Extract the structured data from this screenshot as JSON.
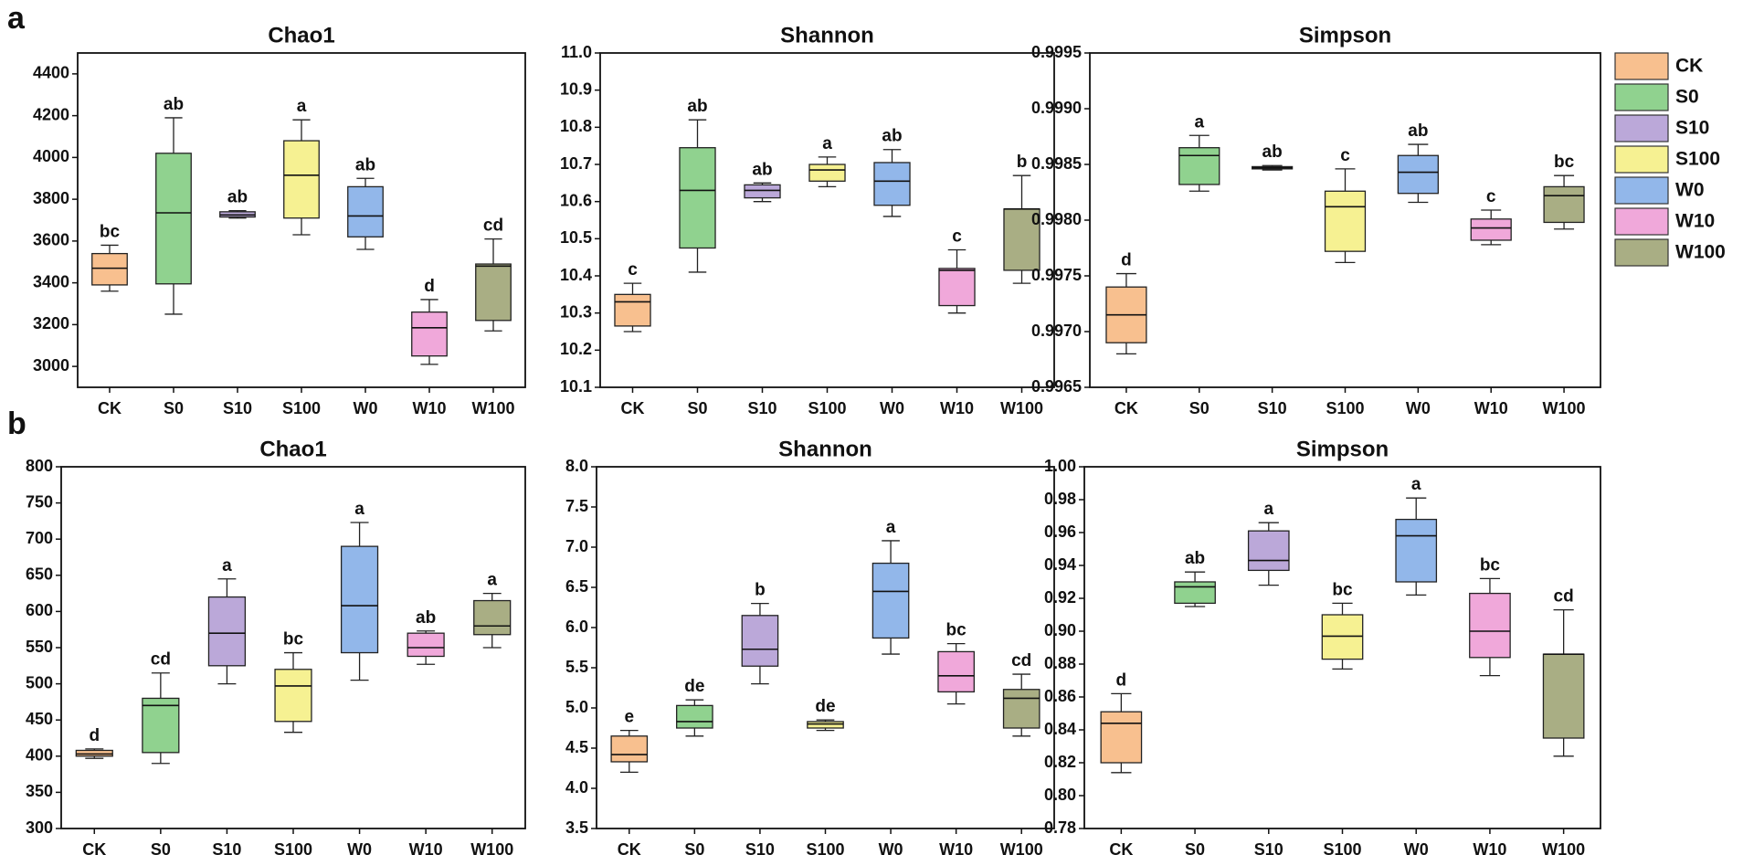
{
  "panel_labels": [
    "a",
    "b"
  ],
  "chart_data": [
    {
      "type": "box",
      "title": "Chao1",
      "categories": [
        "CK",
        "S0",
        "S10",
        "S100",
        "W0",
        "W10",
        "W100"
      ],
      "colors": [
        "#f8c08f",
        "#90d28f",
        "#bba8d9",
        "#f6f192",
        "#92b7ea",
        "#f0a8da",
        "#a9ae84"
      ],
      "ylim": [
        2900,
        4500
      ],
      "yticks": [
        3000,
        3200,
        3400,
        3600,
        3800,
        4000,
        4200,
        4400
      ],
      "min": [
        3360,
        3250,
        3710,
        3630,
        3560,
        3010,
        3170
      ],
      "q1": [
        3390,
        3395,
        3715,
        3710,
        3620,
        3050,
        3220
      ],
      "median": [
        3470,
        3735,
        3725,
        3915,
        3720,
        3185,
        3480
      ],
      "q3": [
        3540,
        4020,
        3740,
        4080,
        3860,
        3260,
        3490
      ],
      "max": [
        3580,
        4190,
        3745,
        4180,
        3900,
        3320,
        3610
      ],
      "letters": [
        "bc",
        "ab",
        "ab",
        "a",
        "ab",
        "d",
        "cd"
      ]
    },
    {
      "type": "box",
      "title": "Shannon",
      "categories": [
        "CK",
        "S0",
        "S10",
        "S100",
        "W0",
        "W10",
        "W100"
      ],
      "colors": [
        "#f8c08f",
        "#90d28f",
        "#bba8d9",
        "#f6f192",
        "#92b7ea",
        "#f0a8da",
        "#a9ae84"
      ],
      "ylim": [
        10.1,
        11.0
      ],
      "yticks": [
        10.1,
        10.2,
        10.3,
        10.4,
        10.5,
        10.6,
        10.7,
        10.8,
        10.9,
        {
          "value": 11,
          "label": "11.0"
        }
      ],
      "min": [
        10.25,
        10.41,
        10.6,
        10.64,
        10.56,
        10.3,
        10.38
      ],
      "q1": [
        10.265,
        10.475,
        10.61,
        10.655,
        10.59,
        10.32,
        10.415
      ],
      "median": [
        10.33,
        10.63,
        10.63,
        10.685,
        10.655,
        10.415,
        10.58
      ],
      "q3": [
        10.35,
        10.745,
        10.645,
        10.7,
        10.705,
        10.42,
        10.58
      ],
      "max": [
        10.38,
        10.82,
        10.65,
        10.72,
        10.74,
        10.47,
        10.67
      ],
      "letters": [
        "c",
        "ab",
        "ab",
        "a",
        "ab",
        "c",
        "b"
      ]
    },
    {
      "type": "box",
      "title": "Simpson",
      "categories": [
        "CK",
        "S0",
        "S10",
        "S100",
        "W0",
        "W10",
        "W100"
      ],
      "colors": [
        "#f8c08f",
        "#90d28f",
        "#bba8d9",
        "#f6f192",
        "#92b7ea",
        "#f0a8da",
        "#a9ae84"
      ],
      "ylim": [
        0.9965,
        0.9995
      ],
      "yticks": [
        0.9965,
        {
          "value": 0.997,
          "label": "0.9970"
        },
        0.9975,
        {
          "value": 0.998,
          "label": "0.9980"
        },
        0.9985,
        {
          "value": 0.999,
          "label": "0.9990"
        },
        0.9995
      ],
      "min": [
        0.9968,
        0.99826,
        0.99845,
        0.99762,
        0.99816,
        0.99778,
        0.99792
      ],
      "q1": [
        0.9969,
        0.99832,
        0.99846,
        0.99772,
        0.99824,
        0.99782,
        0.99798
      ],
      "median": [
        0.99715,
        0.99858,
        0.99847,
        0.99812,
        0.99843,
        0.99793,
        0.99822
      ],
      "q3": [
        0.9974,
        0.99865,
        0.99848,
        0.99826,
        0.99858,
        0.99801,
        0.9983
      ],
      "max": [
        0.99752,
        0.99876,
        0.99849,
        0.99846,
        0.99868,
        0.99809,
        0.9984
      ],
      "letters": [
        "d",
        "a",
        "ab",
        "c",
        "ab",
        "c",
        "bc"
      ]
    },
    {
      "type": "box",
      "title": "Chao1",
      "categories": [
        "CK",
        "S0",
        "S10",
        "S100",
        "W0",
        "W10",
        "W100"
      ],
      "colors": [
        "#f8c08f",
        "#90d28f",
        "#bba8d9",
        "#f6f192",
        "#92b7ea",
        "#f0a8da",
        "#a9ae84"
      ],
      "ylim": [
        300,
        800
      ],
      "yticks": [
        300,
        350,
        400,
        450,
        500,
        550,
        600,
        650,
        700,
        750,
        800
      ],
      "min": [
        397,
        390,
        500,
        433,
        505,
        527,
        550
      ],
      "q1": [
        400,
        405,
        525,
        448,
        543,
        538,
        568
      ],
      "median": [
        403,
        470,
        570,
        497,
        608,
        550,
        580
      ],
      "q3": [
        408,
        480,
        620,
        520,
        690,
        570,
        615
      ],
      "max": [
        410,
        515,
        645,
        543,
        723,
        573,
        625
      ],
      "letters": [
        "d",
        "cd",
        "a",
        "bc",
        "a",
        "ab",
        "a"
      ]
    },
    {
      "type": "box",
      "title": "Shannon",
      "categories": [
        "CK",
        "S0",
        "S10",
        "S100",
        "W0",
        "W10",
        "W100"
      ],
      "colors": [
        "#f8c08f",
        "#90d28f",
        "#bba8d9",
        "#f6f192",
        "#92b7ea",
        "#f0a8da",
        "#a9ae84"
      ],
      "ylim": [
        3.5,
        8.0
      ],
      "yticks": [
        3.5,
        {
          "value": 4,
          "label": "4.0"
        },
        4.5,
        {
          "value": 5,
          "label": "5.0"
        },
        5.5,
        {
          "value": 6,
          "label": "6.0"
        },
        6.5,
        {
          "value": 7,
          "label": "7.0"
        },
        7.5,
        {
          "value": 8,
          "label": "8.0"
        }
      ],
      "min": [
        4.2,
        4.65,
        5.3,
        4.72,
        5.67,
        5.05,
        4.65
      ],
      "q1": [
        4.33,
        4.75,
        5.52,
        4.75,
        5.87,
        5.2,
        4.75
      ],
      "median": [
        4.42,
        4.83,
        5.73,
        4.8,
        6.45,
        5.4,
        5.12
      ],
      "q3": [
        4.65,
        5.03,
        6.15,
        4.83,
        6.8,
        5.7,
        5.23
      ],
      "max": [
        4.72,
        5.1,
        6.3,
        4.85,
        7.08,
        5.8,
        5.42
      ],
      "letters": [
        "e",
        "de",
        "b",
        "de",
        "a",
        "bc",
        "cd"
      ]
    },
    {
      "type": "box",
      "title": "Simpson",
      "categories": [
        "CK",
        "S0",
        "S10",
        "S100",
        "W0",
        "W10",
        "W100"
      ],
      "colors": [
        "#f8c08f",
        "#90d28f",
        "#bba8d9",
        "#f6f192",
        "#92b7ea",
        "#f0a8da",
        "#a9ae84"
      ],
      "ylim": [
        0.78,
        1.0
      ],
      "yticks": [
        0.78,
        {
          "value": 0.8,
          "label": "0.80"
        },
        0.82,
        0.84,
        0.86,
        0.88,
        {
          "value": 0.9,
          "label": "0.90"
        },
        0.92,
        0.94,
        0.96,
        0.98,
        {
          "value": 1,
          "label": "1.00"
        }
      ],
      "min": [
        0.814,
        0.915,
        0.928,
        0.877,
        0.922,
        0.873,
        0.824
      ],
      "q1": [
        0.82,
        0.917,
        0.937,
        0.883,
        0.93,
        0.884,
        0.835
      ],
      "median": [
        0.844,
        0.927,
        0.943,
        0.897,
        0.958,
        0.9,
        0.886
      ],
      "q3": [
        0.851,
        0.93,
        0.961,
        0.91,
        0.968,
        0.923,
        0.886
      ],
      "max": [
        0.862,
        0.936,
        0.966,
        0.917,
        0.981,
        0.932,
        0.913
      ],
      "letters": [
        "d",
        "ab",
        "a",
        "bc",
        "a",
        "bc",
        "cd"
      ]
    }
  ]
}
